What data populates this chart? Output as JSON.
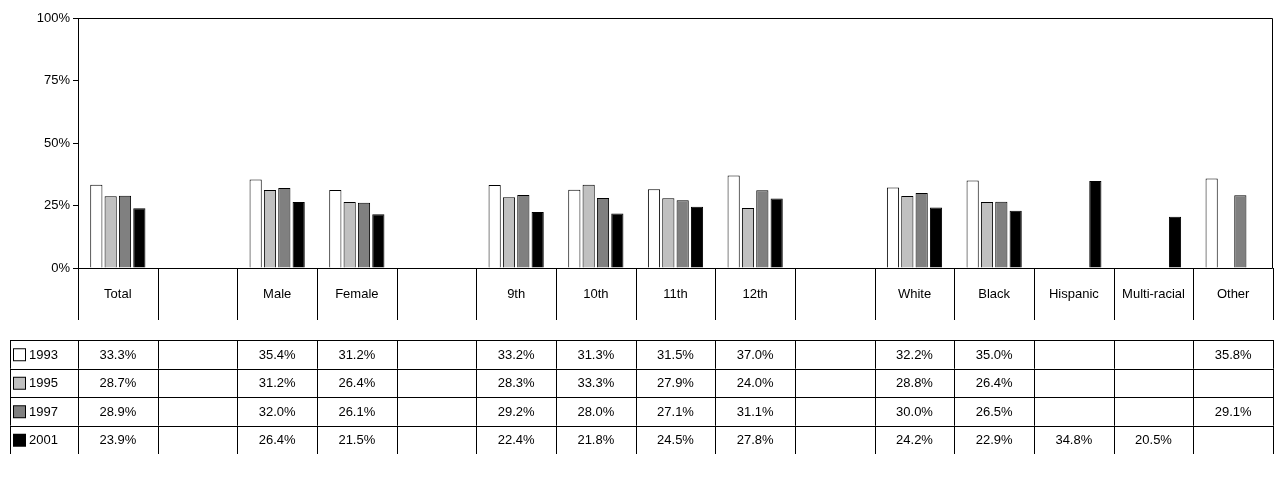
{
  "chart_data": {
    "type": "bar",
    "categories": [
      "Total",
      null,
      "Male",
      "Female",
      null,
      "9th",
      "10th",
      "11th",
      "12th",
      null,
      "White",
      "Black",
      "Hispanic",
      "Multi-racial",
      "Other"
    ],
    "ylim": [
      0,
      100
    ],
    "yticks": [
      {
        "value": 0,
        "label": "0%"
      },
      {
        "value": 25,
        "label": "25%"
      },
      {
        "value": 50,
        "label": "50%"
      },
      {
        "value": 75,
        "label": "75%"
      },
      {
        "value": 100,
        "label": "100%"
      }
    ],
    "legend": "bottom",
    "series": [
      {
        "name": "1993",
        "color": "#ffffff",
        "values": [
          33.3,
          null,
          35.4,
          31.2,
          null,
          33.2,
          31.3,
          31.5,
          37.0,
          null,
          32.2,
          35.0,
          null,
          null,
          35.8
        ],
        "value_labels": [
          "33.3%",
          null,
          "35.4%",
          "31.2%",
          null,
          "33.2%",
          "31.3%",
          "31.5%",
          "37.0%",
          null,
          "32.2%",
          "35.0%",
          null,
          null,
          "35.8%"
        ]
      },
      {
        "name": "1995",
        "color": "#c0c0c0",
        "values": [
          28.7,
          null,
          31.2,
          26.4,
          null,
          28.3,
          33.3,
          27.9,
          24.0,
          null,
          28.8,
          26.4,
          null,
          null,
          null
        ],
        "value_labels": [
          "28.7%",
          null,
          "31.2%",
          "26.4%",
          null,
          "28.3%",
          "33.3%",
          "27.9%",
          "24.0%",
          null,
          "28.8%",
          "26.4%",
          null,
          null,
          null
        ]
      },
      {
        "name": "1997",
        "color": "#808080",
        "values": [
          28.9,
          null,
          32.0,
          26.1,
          null,
          29.2,
          28.0,
          27.1,
          31.1,
          null,
          30.0,
          26.5,
          null,
          null,
          29.1
        ],
        "value_labels": [
          "28.9%",
          null,
          "32.0%",
          "26.1%",
          null,
          "29.2%",
          "28.0%",
          "27.1%",
          "31.1%",
          null,
          "30.0%",
          "26.5%",
          null,
          null,
          "29.1%"
        ]
      },
      {
        "name": "2001",
        "color": "#000000",
        "values": [
          23.9,
          null,
          26.4,
          21.5,
          null,
          22.4,
          21.8,
          24.5,
          27.8,
          null,
          24.2,
          22.9,
          34.8,
          20.5,
          null
        ],
        "value_labels": [
          "23.9%",
          null,
          "26.4%",
          "21.5%",
          null,
          "22.4%",
          "21.8%",
          "24.5%",
          "27.8%",
          null,
          "24.2%",
          "22.9%",
          "34.8%",
          "20.5%",
          null
        ]
      }
    ]
  }
}
